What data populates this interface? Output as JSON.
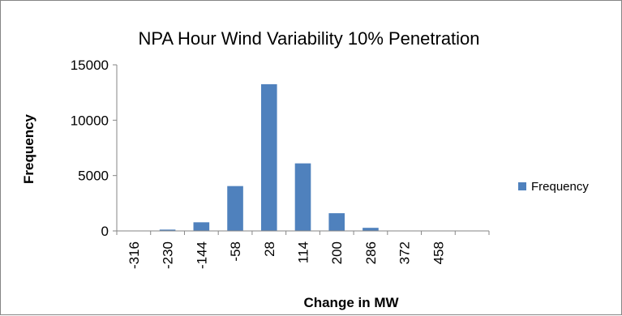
{
  "chart_data": {
    "type": "bar",
    "title": "NPA Hour Wind Variability 10% Penetration",
    "xlabel": "Change in MW",
    "ylabel": "Frequency",
    "categories": [
      "-316",
      "-230",
      "-144",
      "-58",
      "28",
      "114",
      "200",
      "286",
      "372",
      "458",
      ""
    ],
    "series": [
      {
        "name": "Frequency",
        "values": [
          0,
          120,
          780,
          4050,
          13250,
          6100,
          1600,
          280,
          30,
          10,
          0
        ]
      }
    ],
    "ylim": [
      0,
      15000
    ],
    "yticks": [
      0,
      5000,
      10000,
      15000
    ],
    "grid": false,
    "legend": "right",
    "colors": {
      "bar": "#4F81BD",
      "axis": "#868686"
    }
  }
}
